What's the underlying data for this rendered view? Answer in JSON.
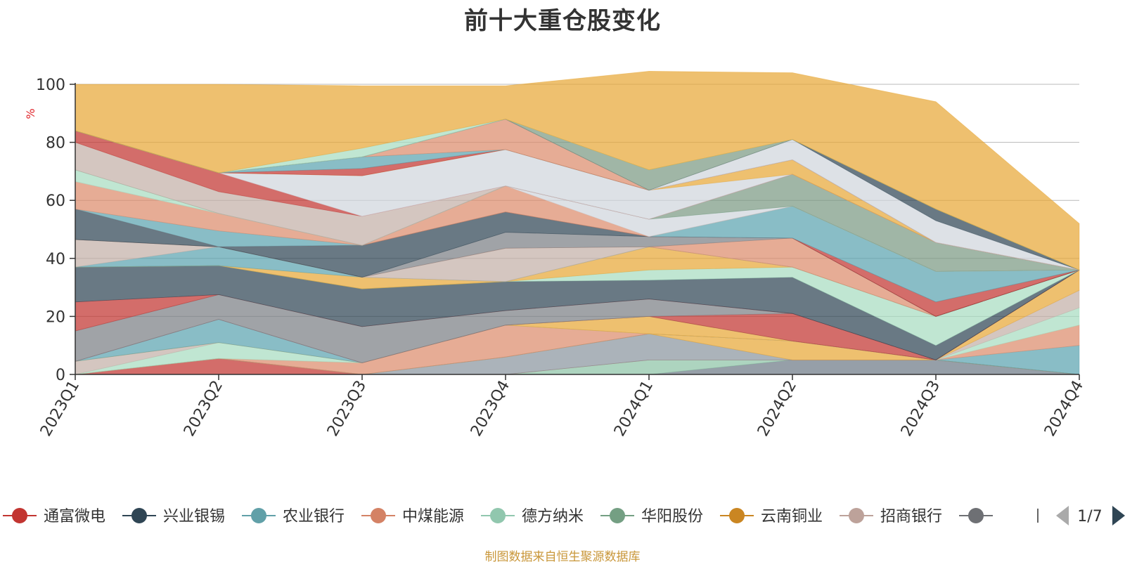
{
  "title": "前十大重仓股变化",
  "source_note": "制图数据来自恒生聚源数据库",
  "chart_data": {
    "type": "area",
    "stacked": true,
    "title": "前十大重仓股变化",
    "unit": "%",
    "ylim": [
      0,
      100
    ],
    "yticks": [
      0,
      20,
      40,
      60,
      80,
      100
    ],
    "grid": true,
    "categories": [
      "2023Q1",
      "2023Q2",
      "2023Q3",
      "2023Q4",
      "2024Q1",
      "2024Q2",
      "2024Q3",
      "2024Q4"
    ],
    "series": [
      {
        "color": "#6e7a86",
        "values": [
          0,
          0,
          0,
          0,
          0,
          5,
          5,
          0
        ]
      },
      {
        "color": "#8ec4a6",
        "values": [
          0,
          0,
          0,
          0,
          5,
          0,
          0,
          0
        ]
      },
      {
        "color": "#c23531",
        "values": [
          0,
          5.5,
          0,
          0,
          0,
          0,
          0,
          0
        ]
      },
      {
        "color": "#8b95a0",
        "values": [
          0,
          0,
          0,
          6,
          9,
          0,
          0,
          0
        ]
      },
      {
        "color": "#e8a838",
        "values": [
          0,
          0,
          0,
          0,
          0,
          6.5,
          0,
          0
        ]
      },
      {
        "color": "#5ba3b0",
        "values": [
          0,
          0,
          0,
          0,
          0,
          0,
          0,
          10
        ]
      },
      {
        "color": "#dc8c6c",
        "values": [
          0,
          0,
          4,
          11,
          0,
          0,
          0,
          7
        ]
      },
      {
        "color": "#a8dcc0",
        "values": [
          0,
          5.5,
          0,
          0,
          0,
          0,
          0,
          6
        ]
      },
      {
        "color": "#c4b0a8",
        "values": [
          4.5,
          0,
          0,
          0,
          0,
          0,
          0,
          6
        ]
      },
      {
        "color": "#e8a838",
        "values": [
          0,
          0,
          0,
          0,
          6,
          0,
          0,
          7
        ]
      },
      {
        "color": "#5ba3b0",
        "values": [
          0,
          8,
          0,
          0,
          0,
          0,
          0,
          0
        ]
      },
      {
        "color": "#c23531",
        "values": [
          0,
          0,
          0,
          0,
          0,
          9.5,
          0,
          0
        ]
      },
      {
        "color": "#7c7f85",
        "values": [
          10.5,
          8.5,
          12.5,
          5,
          6,
          0,
          0,
          0
        ]
      },
      {
        "color": "#c23531",
        "values": [
          10,
          0,
          0,
          0,
          0,
          0,
          0,
          0
        ]
      },
      {
        "color": "#2f4554",
        "values": [
          12,
          10,
          13,
          10,
          6.5,
          12.5,
          5,
          0
        ]
      },
      {
        "color": "#a8dcc0",
        "values": [
          0,
          0,
          0,
          0,
          3.5,
          3.5,
          10,
          0
        ]
      },
      {
        "color": "#e8a838",
        "values": [
          0,
          0,
          4,
          0,
          8,
          0,
          0,
          0
        ]
      },
      {
        "color": "#5ba3b0",
        "values": [
          0,
          6.5,
          0,
          0,
          0,
          0,
          0,
          0
        ]
      },
      {
        "color": "#c4b0a8",
        "values": [
          9.5,
          0,
          0,
          11.5,
          0,
          0,
          0,
          0
        ]
      },
      {
        "color": "#dc8c6c",
        "values": [
          0,
          0,
          0,
          0,
          0,
          10,
          0,
          0
        ]
      },
      {
        "color": "#7c7f85",
        "values": [
          0,
          0,
          0,
          5.5,
          3.5,
          0,
          0,
          0
        ]
      },
      {
        "color": "#2f4554",
        "values": [
          10.5,
          0,
          11,
          7,
          0,
          0,
          0,
          0
        ]
      },
      {
        "color": "#c23531",
        "values": [
          0,
          0,
          0,
          0,
          0,
          0,
          5,
          0
        ]
      },
      {
        "color": "#5ba3b0",
        "values": [
          0,
          5.5,
          0,
          0,
          0,
          11,
          10.5,
          0
        ]
      },
      {
        "color": "#dc8c6c",
        "values": [
          9.5,
          6,
          0,
          9,
          0,
          0,
          0,
          0
        ]
      },
      {
        "color": "#d0d6dc",
        "values": [
          0,
          0,
          0,
          0,
          6,
          0,
          0,
          0
        ]
      },
      {
        "color": "#a8dcc0",
        "values": [
          4,
          0,
          0,
          0,
          0,
          0,
          0,
          0
        ]
      },
      {
        "color": "#7c9a84",
        "values": [
          0,
          0,
          0,
          0,
          0,
          11,
          10,
          0
        ]
      },
      {
        "color": "#c4b0a8",
        "values": [
          9.5,
          7.5,
          10,
          0,
          0,
          0,
          0,
          0
        ]
      },
      {
        "color": "#c23531",
        "values": [
          4,
          6.5,
          0,
          0,
          0,
          0,
          0,
          0
        ]
      },
      {
        "color": "#d0d6dc",
        "values": [
          0,
          0,
          14,
          12.5,
          10,
          0,
          0,
          0
        ]
      },
      {
        "color": "#e8a838",
        "values": [
          0,
          0,
          0,
          0,
          0,
          5,
          0,
          0
        ]
      },
      {
        "color": "#c23531",
        "values": [
          0,
          0,
          2.5,
          0,
          0,
          0,
          0,
          0
        ]
      },
      {
        "color": "#5ba3b0",
        "values": [
          0,
          0,
          4,
          0,
          0,
          0,
          0,
          0
        ]
      },
      {
        "color": "#dc8c6c",
        "values": [
          0,
          0,
          0,
          10.5,
          0,
          0,
          0,
          0
        ]
      },
      {
        "color": "#d0d6dc",
        "values": [
          0,
          0,
          0,
          0,
          0,
          7,
          7.5,
          0
        ]
      },
      {
        "color": "#2f4554",
        "values": [
          0,
          0,
          0,
          0,
          0,
          0,
          4,
          0
        ]
      },
      {
        "color": "#7c9a84",
        "values": [
          0,
          0,
          0,
          0,
          7,
          0,
          0,
          0
        ]
      },
      {
        "color": "#a8dcc0",
        "values": [
          0,
          0,
          3,
          0,
          0,
          0,
          0,
          0
        ]
      },
      {
        "color": "#e8a838",
        "values": [
          16,
          30.5,
          21.5,
          11.5,
          34,
          23,
          37,
          16
        ]
      }
    ],
    "legend": {
      "position": "bottom",
      "items": [
        {
          "name": "通富微电",
          "color": "#c23531"
        },
        {
          "name": "兴业银锡",
          "color": "#2f4554"
        },
        {
          "name": "农业银行",
          "color": "#61a0a8"
        },
        {
          "name": "中煤能源",
          "color": "#d48265"
        },
        {
          "name": "德方纳米",
          "color": "#91c7ae"
        },
        {
          "name": "华阳股份",
          "color": "#749f83"
        },
        {
          "name": "云南铜业",
          "color": "#ca8622"
        },
        {
          "name": "招商银行",
          "color": "#bda29a"
        },
        {
          "name": "",
          "color": "#6e7074"
        }
      ],
      "page": "1/7"
    }
  }
}
